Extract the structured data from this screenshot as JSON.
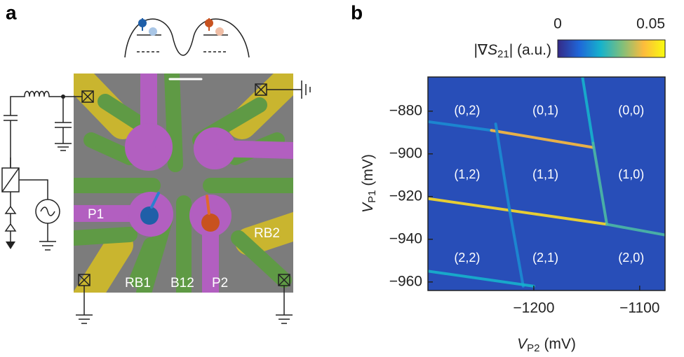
{
  "panel_a": {
    "label": "a",
    "gates": [
      "P1",
      "RB1",
      "B12",
      "P2",
      "RB2"
    ]
  },
  "chart_data": {
    "type": "stability-diagram",
    "label": "b",
    "xlabel": {
      "symbol": "V",
      "subscript": "P2",
      "unit": "(mV)"
    },
    "ylabel": {
      "symbol": "V",
      "subscript": "P1",
      "unit": "(mV)"
    },
    "xlim": [
      -1300,
      -1076
    ],
    "xticks": [
      -1200,
      -1100
    ],
    "ylim": [
      -964,
      -864
    ],
    "yticks": [
      -880,
      -900,
      -920,
      -940,
      -960
    ],
    "colorbar_label": {
      "pre": "|∇",
      "symbol": "S",
      "subscript": "21",
      "post": "| (a.u.)"
    },
    "clim": [
      0,
      0.05
    ],
    "cticks": [
      0,
      0.05
    ],
    "colormap": [
      "#352a87",
      "#1f66d8",
      "#16b2cc",
      "#7fbf7b",
      "#fcbb3d",
      "#f9fb0e"
    ],
    "background": 0.006,
    "lines": [
      {
        "x": [
          -1299,
          -1240
        ],
        "y": [
          -885,
          -889
        ],
        "level": 0.015
      },
      {
        "x": [
          -1240,
          -1144
        ],
        "y": [
          -889,
          -897
        ],
        "level": 0.04
      },
      {
        "x": [
          -1154,
          -1144
        ],
        "y": [
          -864,
          -895
        ],
        "level": 0.02
      },
      {
        "x": [
          -1144,
          -1131
        ],
        "y": [
          -895,
          -933
        ],
        "level": 0.025
      },
      {
        "x": [
          -1299,
          -1131
        ],
        "y": [
          -921,
          -933
        ],
        "level": 0.045
      },
      {
        "x": [
          -1131,
          -1076
        ],
        "y": [
          -933,
          -938
        ],
        "level": 0.025
      },
      {
        "x": [
          -1236,
          -1223
        ],
        "y": [
          -886,
          -926
        ],
        "level": 0.015
      },
      {
        "x": [
          -1223,
          -1210
        ],
        "y": [
          -926,
          -962
        ],
        "level": 0.015
      },
      {
        "x": [
          -1299,
          -1200
        ],
        "y": [
          -955,
          -962
        ],
        "level": 0.02
      }
    ],
    "regions": [
      {
        "label": "(0,2)",
        "x": -1263,
        "y": -880
      },
      {
        "label": "(0,1)",
        "x": -1189,
        "y": -880
      },
      {
        "label": "(0,0)",
        "x": -1108,
        "y": -880
      },
      {
        "label": "(1,2)",
        "x": -1263,
        "y": -910
      },
      {
        "label": "(1,1)",
        "x": -1189,
        "y": -910
      },
      {
        "label": "(1,0)",
        "x": -1108,
        "y": -910
      },
      {
        "label": "(2,2)",
        "x": -1263,
        "y": -949
      },
      {
        "label": "(2,1)",
        "x": -1189,
        "y": -949
      },
      {
        "label": "(2,0)",
        "x": -1108,
        "y": -949
      }
    ]
  }
}
